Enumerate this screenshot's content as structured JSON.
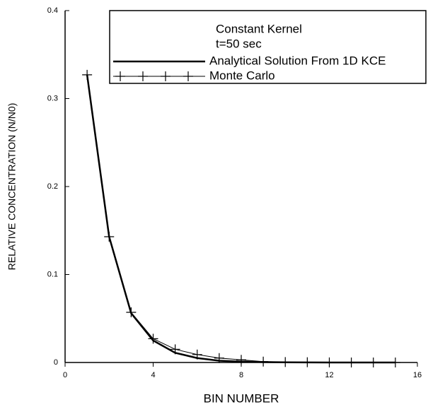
{
  "chart_data": {
    "type": "line",
    "xlabel": "BIN NUMBER",
    "ylabel": "RELATIVE CONCENTRATION (N/N0)",
    "annotations": [
      "Constant Kernel",
      "t=50 sec"
    ],
    "x": [
      1,
      2,
      3,
      4,
      5,
      6,
      7,
      8,
      9,
      10,
      11,
      12,
      13,
      14,
      15
    ],
    "series": [
      {
        "name": "Analytical Solution From 1D KCE",
        "color": "#000000",
        "marker": "none",
        "width": 2.5,
        "values": [
          0.327,
          0.143,
          0.056,
          0.025,
          0.011,
          0.005,
          0.002,
          0.001,
          0.0005,
          0.0002,
          0.0001,
          0,
          0,
          0,
          0
        ]
      },
      {
        "name": "Monte Carlo",
        "color": "#000000",
        "marker": "plus",
        "width": 1,
        "values": [
          0.327,
          0.143,
          0.057,
          0.027,
          0.015,
          0.009,
          0.005,
          0.003,
          0.001,
          0.0005,
          0.0003,
          0.0001,
          0,
          0,
          0
        ]
      }
    ],
    "xlim": [
      0,
      16
    ],
    "xticks": [
      0,
      4,
      8,
      12,
      16
    ],
    "ylim": [
      0,
      0.4
    ],
    "yticks": [
      0,
      0.1,
      0.2,
      0.3,
      0.4
    ],
    "legend": "top-right"
  }
}
